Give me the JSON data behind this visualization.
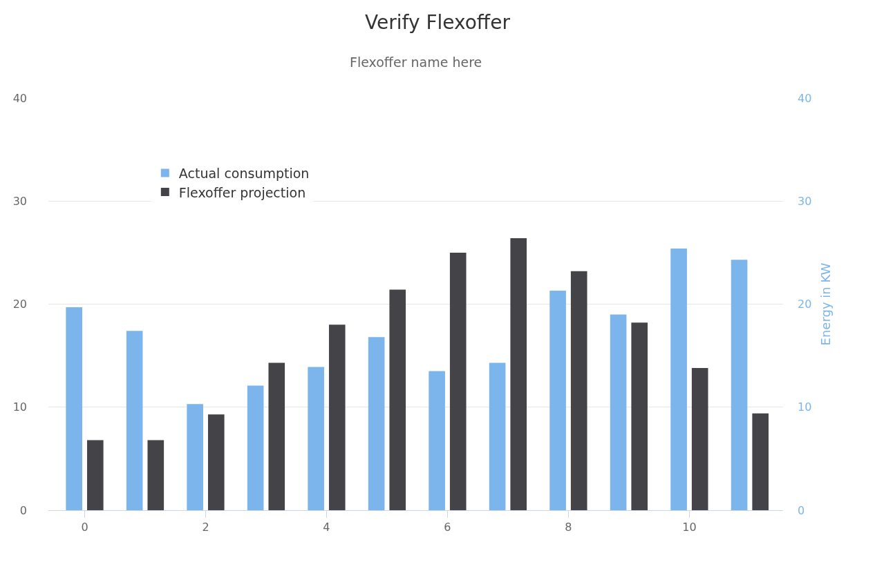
{
  "chart_data": {
    "type": "bar",
    "title": "Verify Flexoffer",
    "subtitle": "Flexoffer name here",
    "y2label": "Energy in KW",
    "x": [
      0,
      1,
      2,
      3,
      4,
      5,
      6,
      7,
      8,
      9,
      10,
      11
    ],
    "series": [
      {
        "name": "Actual consumption",
        "color": "#7cb5ec",
        "axis": "y2",
        "values": [
          19.7,
          17.4,
          10.3,
          12.1,
          13.9,
          16.8,
          13.5,
          14.3,
          21.3,
          19.0,
          25.4,
          24.3
        ]
      },
      {
        "name": "Flexoffer projection",
        "color": "#434348",
        "values": [
          6.8,
          6.8,
          9.3,
          14.3,
          18.0,
          21.4,
          25.0,
          26.4,
          23.2,
          18.2,
          13.8,
          9.4
        ]
      }
    ],
    "xlim": [
      -0.6,
      11.55
    ],
    "xticks": [
      0,
      2,
      4,
      6,
      8,
      10
    ],
    "ylim": [
      0,
      40
    ],
    "yticks": [
      0,
      10,
      20,
      30,
      40
    ],
    "y2lim": [
      0,
      40
    ],
    "y2ticks": [
      0,
      10,
      20,
      30,
      40
    ],
    "grid": "y",
    "legend": "top left"
  }
}
